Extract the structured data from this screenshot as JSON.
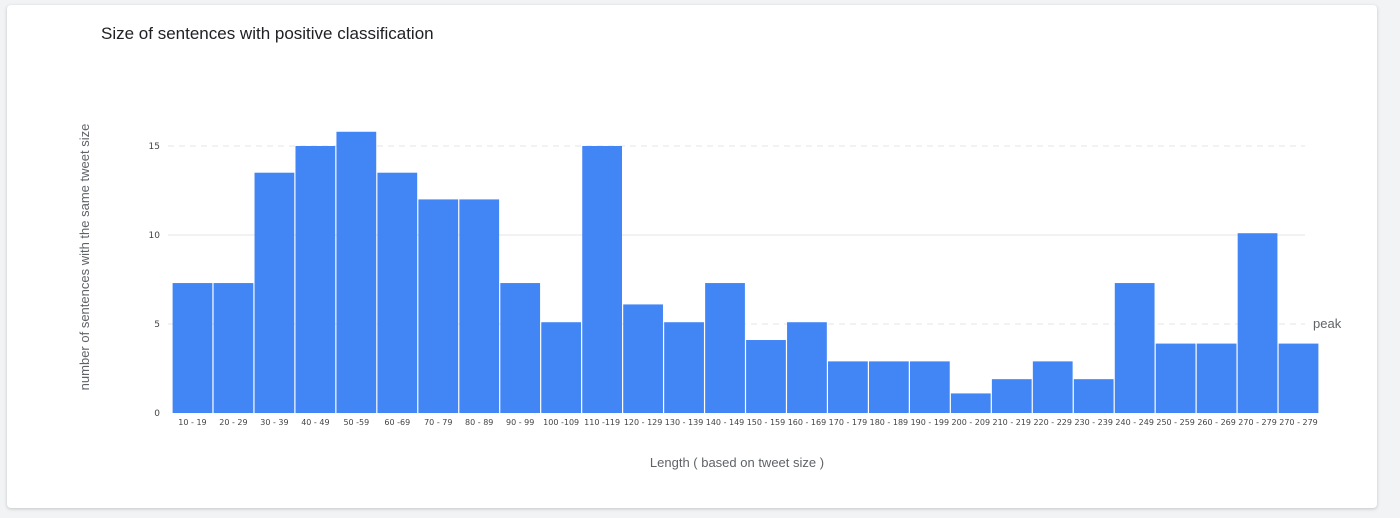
{
  "chart_data": {
    "type": "bar",
    "title": "Size of sentences with positive classification",
    "xlabel": "Length ( based on tweet size )",
    "ylabel": "number of sentences with the same tweet size",
    "categories": [
      "10 - 19",
      "20 - 29",
      "30 - 39",
      "40 - 49",
      "50 -59",
      "60 -69",
      "70 - 79",
      "80 - 89",
      "90 - 99",
      "100 -109",
      "110 -119",
      "120 - 129",
      "130 - 139",
      "140 - 149",
      "150 - 159",
      "160 - 169",
      "170 - 179",
      "180 - 189",
      "190 - 199",
      "200 - 209",
      "210 - 219",
      "220 - 229",
      "230 - 239",
      "240 - 249",
      "250 - 259",
      "260 - 269",
      "270 - 279",
      "270 - 279"
    ],
    "values": [
      7.3,
      7.3,
      13.5,
      15,
      15.8,
      13.5,
      12,
      12,
      7.3,
      5.1,
      15,
      6.1,
      5.1,
      7.3,
      4.1,
      5.1,
      2.9,
      2.9,
      2.9,
      1.1,
      1.9,
      2.9,
      1.9,
      7.3,
      3.9,
      3.9,
      10.1,
      3.9
    ],
    "yticks": [
      0,
      5,
      10,
      15
    ],
    "ylim": [
      0,
      15
    ],
    "reference_line": {
      "label": "peak",
      "value": 5
    },
    "grid": true,
    "bar_color": "#4285f4"
  }
}
